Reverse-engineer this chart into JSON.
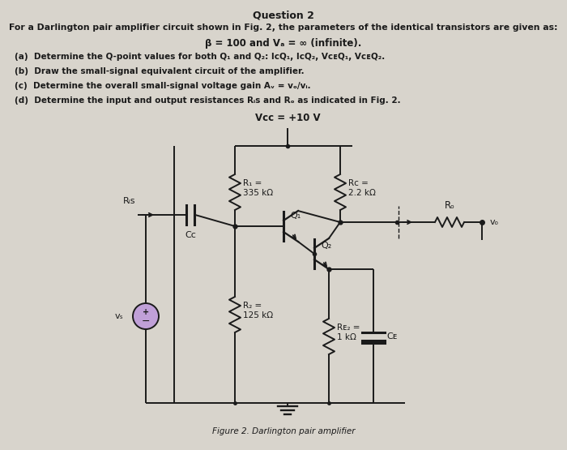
{
  "bg_color": "#d8d4cc",
  "title": "Question 2",
  "intro": "For a Darlington pair amplifier circuit shown in Fig. 2, the parameters of the identical transistors are given as:",
  "beta": "β = 100 and Vₐ = ∞ (infinite).",
  "qa": "(a)  Determine the Q-point values for both Q₁ and Q₂: IᴄQ₁, IᴄQ₂, VᴄᴇQ₁, VᴄᴇQ₂.",
  "qb": "(b)  Draw the small-signal equivalent circuit of the amplifier.",
  "qc": "(c)  Determine the overall small-signal voltage gain Aᵥ = vₒ/vᵢ.",
  "qd": "(d)  Determine the input and output resistances Rᵢs and Rₒ as indicated in Fig. 2.",
  "caption": "Figure 2. Darlington pair amplifier",
  "vcc": "Vᴄᴄ = +10 V",
  "r1": "R₁ =\n335 kΩ",
  "rc": "Rᴄ =\n2.2 kΩ",
  "r2": "R₂ =\n125 kΩ",
  "re2": "Rᴇ₂ =\n1 kΩ",
  "ro": "Rₒ",
  "vo": "vₒ",
  "ris": "Rᵢs",
  "cc": "Cᴄ",
  "ce": "Cᴇ",
  "vs": "vₛ",
  "q1": "Q₁",
  "q2": "Q₂"
}
